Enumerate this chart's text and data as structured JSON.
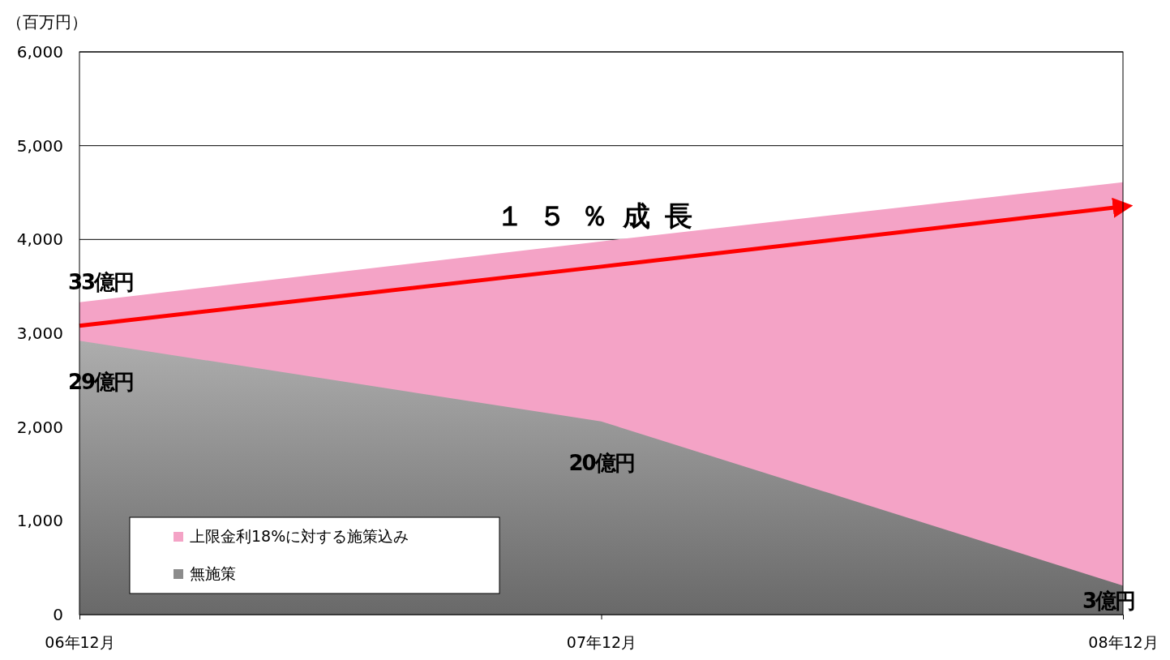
{
  "chart_data": {
    "type": "area",
    "ylabel": "（百万円）",
    "categories": [
      "06年12月",
      "07年12月",
      "08年12月"
    ],
    "series": [
      {
        "name": "上限金利18%に対する施策込み",
        "color": "#f4a3c6",
        "values": [
          3330,
          3980,
          4610
        ]
      },
      {
        "name": "無施策",
        "color": "#8c8c8c",
        "values": [
          2920,
          2060,
          310
        ]
      },
      {
        "type": "line",
        "color": "#ff0000",
        "values": [
          3080,
          3710,
          4350
        ]
      }
    ],
    "ylim": [
      0,
      6000
    ],
    "yticks": [
      {
        "value": 0,
        "label": "0"
      },
      {
        "value": 1000,
        "label": "1,000"
      },
      {
        "value": 2000,
        "label": "2,000"
      },
      {
        "value": 3000,
        "label": "3,000"
      },
      {
        "value": 4000,
        "label": "4,000"
      },
      {
        "value": 5000,
        "label": "5,000"
      },
      {
        "value": 6000,
        "label": "6,000"
      }
    ],
    "grid": "y",
    "legend": "bottom left",
    "annotations": [
      {
        "text": "33億円",
        "x": "06年12月",
        "y": 3330
      },
      {
        "text": "29億円",
        "x": "06年12月",
        "y": 2920
      },
      {
        "text": "20億円",
        "x": "07年12月",
        "y": 2060
      },
      {
        "text": "3億円",
        "x": "08年12月",
        "y": 310
      },
      "１５％成長"
    ]
  }
}
